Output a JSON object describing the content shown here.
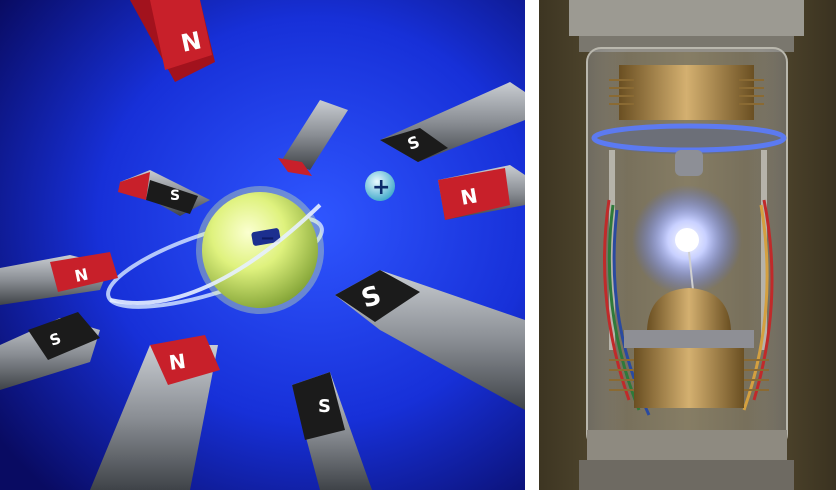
{
  "left_panel": {
    "subject": "Illustration of a particle orbiting among bar magnets",
    "pole_labels": {
      "north": "N",
      "south": "S"
    },
    "charge_label": "+",
    "inner_mark": "−",
    "colors": {
      "background_center": "#1a3dff",
      "background_edge": "#0a0f6e",
      "north_pole": "#c8202a",
      "south_pole": "#1b1b1b",
      "magnet_body": "#8c8f94",
      "sphere": "#d8f07a"
    }
  },
  "right_panel": {
    "subject": "Photograph of a glass vacuum apparatus with a glowing blue bead",
    "colors": {
      "background": "#6b5f3e",
      "brass": "#b08a4a",
      "glow": "#c8d0ff",
      "blue_ring": "#4a6bff"
    }
  }
}
